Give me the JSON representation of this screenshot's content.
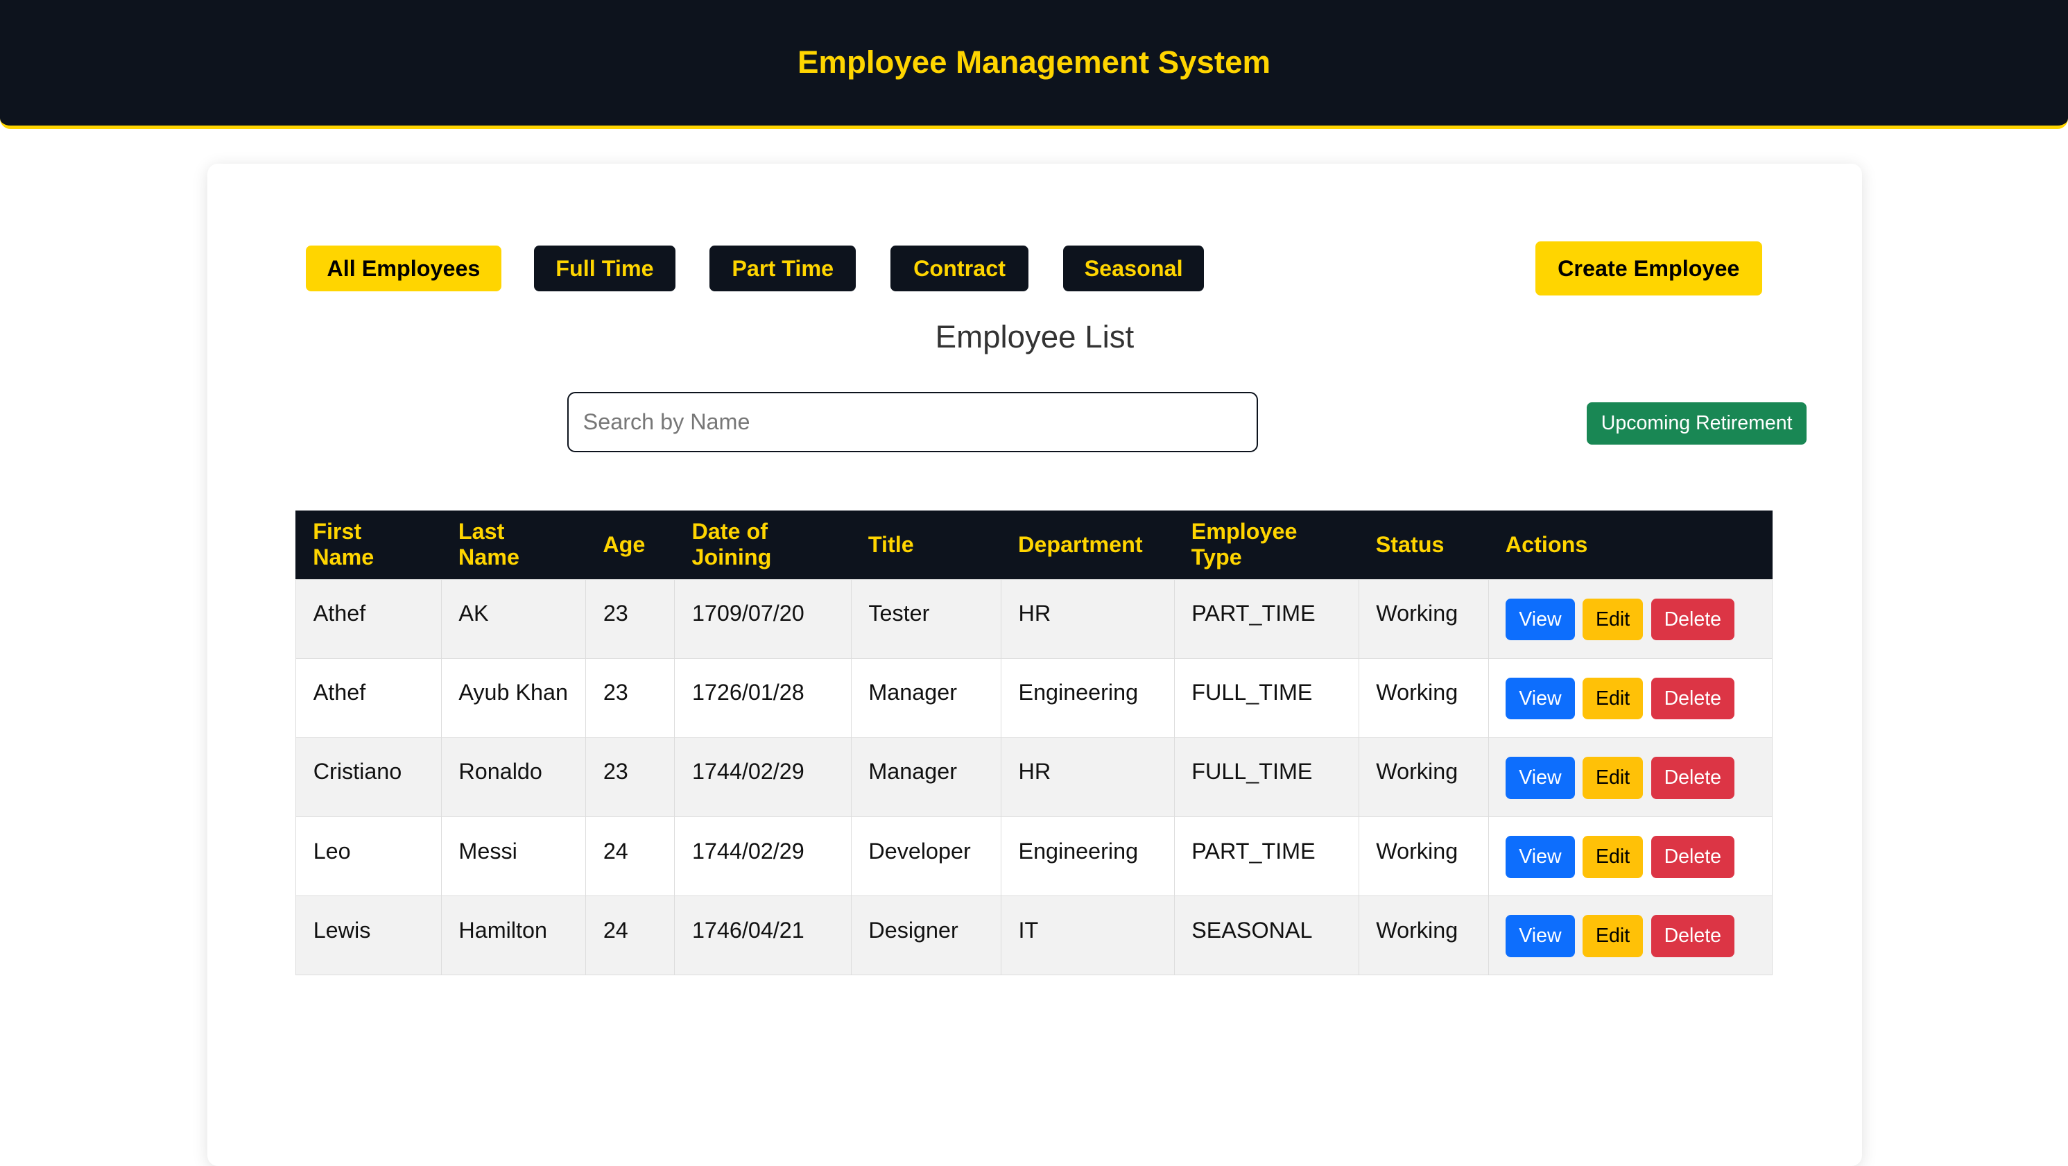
{
  "header": {
    "title": "Employee Management System"
  },
  "filters": [
    {
      "label": "All Employees",
      "active": true
    },
    {
      "label": "Full Time"
    },
    {
      "label": "Part Time"
    },
    {
      "label": "Contract"
    },
    {
      "label": "Seasonal"
    }
  ],
  "create_label": "Create Employee",
  "list_title": "Employee List",
  "search": {
    "placeholder": "Search by Name",
    "value": ""
  },
  "retirement_label": "Upcoming Retirement",
  "colors": {
    "dark": "#0d131d",
    "accent": "#ffd500",
    "view": "#0d6efd",
    "edit": "#ffc107",
    "delete": "#dc3545",
    "retirement": "#198754"
  },
  "table": {
    "columns": [
      "First Name",
      "Last Name",
      "Age",
      "Date of Joining",
      "Title",
      "Department",
      "Employee Type",
      "Status",
      "Actions"
    ],
    "rows": [
      [
        "Athef",
        "AK",
        "23",
        "1709/07/20",
        "Tester",
        "HR",
        "PART_TIME",
        "Working"
      ],
      [
        "Athef",
        "Ayub Khan",
        "23",
        "1726/01/28",
        "Manager",
        "Engineering",
        "FULL_TIME",
        "Working"
      ],
      [
        "Cristiano",
        "Ronaldo",
        "23",
        "1744/02/29",
        "Manager",
        "HR",
        "FULL_TIME",
        "Working"
      ],
      [
        "Leo",
        "Messi",
        "24",
        "1744/02/29",
        "Developer",
        "Engineering",
        "PART_TIME",
        "Working"
      ],
      [
        "Lewis",
        "Hamilton",
        "24",
        "1746/04/21",
        "Designer",
        "IT",
        "SEASONAL",
        "Working"
      ]
    ],
    "actions": {
      "view": "View",
      "edit": "Edit",
      "delete": "Delete"
    }
  }
}
